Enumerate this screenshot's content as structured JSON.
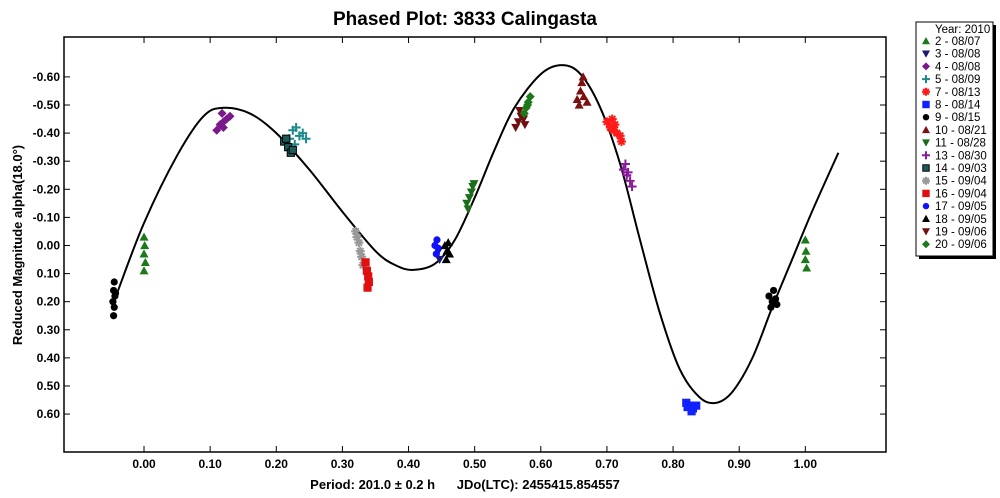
{
  "chart_data": {
    "type": "scatter",
    "title": "Phased Plot: 3833 Calingasta",
    "xlabel": "Period: 201.0 ± 0.2 h      JDo(LTC): 2455415.854557",
    "ylabel": "Reduced Magnitude alpha(18.0°)",
    "xlim": [
      -0.121,
      1.122
    ],
    "ylim": [
      -0.742,
      0.735
    ],
    "y_inverted": true,
    "grid": false,
    "x_ticks": [
      "0.00",
      "0.10",
      "0.20",
      "0.30",
      "0.40",
      "0.50",
      "0.60",
      "0.70",
      "0.80",
      "0.90",
      "1.00"
    ],
    "y_ticks": [
      "-0.60",
      "-0.50",
      "-0.40",
      "-0.30",
      "-0.20",
      "-0.10",
      "0.00",
      "0.10",
      "0.20",
      "0.30",
      "0.40",
      "0.50",
      "0.60"
    ],
    "legend": {
      "title": "Year: 2010",
      "placement": "right"
    },
    "fit_curve": [
      [
        -0.04,
        0.165
      ],
      [
        0.0,
        -0.08
      ],
      [
        0.05,
        -0.32
      ],
      [
        0.09,
        -0.46
      ],
      [
        0.12,
        -0.49
      ],
      [
        0.16,
        -0.47
      ],
      [
        0.2,
        -0.4
      ],
      [
        0.25,
        -0.27
      ],
      [
        0.3,
        -0.12
      ],
      [
        0.35,
        0.02
      ],
      [
        0.38,
        0.07
      ],
      [
        0.407,
        0.087
      ],
      [
        0.44,
        0.065
      ],
      [
        0.47,
        -0.02
      ],
      [
        0.5,
        -0.17
      ],
      [
        0.53,
        -0.34
      ],
      [
        0.56,
        -0.49
      ],
      [
        0.6,
        -0.61
      ],
      [
        0.632,
        -0.642
      ],
      [
        0.66,
        -0.61
      ],
      [
        0.69,
        -0.49
      ],
      [
        0.72,
        -0.29
      ],
      [
        0.75,
        -0.02
      ],
      [
        0.78,
        0.24
      ],
      [
        0.81,
        0.44
      ],
      [
        0.84,
        0.54
      ],
      [
        0.865,
        0.56
      ],
      [
        0.89,
        0.52
      ],
      [
        0.92,
        0.4
      ],
      [
        0.95,
        0.22
      ],
      [
        0.98,
        0.05
      ],
      [
        1.01,
        -0.12
      ],
      [
        1.05,
        -0.33
      ]
    ],
    "series": [
      {
        "name": "2 - 08/07",
        "marker": "triangle",
        "color": "#1a7a1a",
        "points": [
          [
            0.0,
            -0.03
          ],
          [
            0.001,
            0.0
          ],
          [
            0.0,
            0.03
          ],
          [
            0.002,
            0.06
          ],
          [
            0.0,
            0.09
          ],
          [
            1.0,
            -0.02
          ],
          [
            1.001,
            0.02
          ],
          [
            1.0,
            0.05
          ],
          [
            1.002,
            0.08
          ]
        ]
      },
      {
        "name": "3 - 08/08",
        "marker": "triangle-down",
        "color": "#1a1a70",
        "points": [
          [
            0.445,
            0.02
          ],
          [
            0.447,
            0.05
          ]
        ]
      },
      {
        "name": "4 - 08/08",
        "marker": "diamond",
        "color": "#7a1a8a",
        "points": [
          [
            0.11,
            -0.41
          ],
          [
            0.115,
            -0.43
          ],
          [
            0.12,
            -0.44
          ],
          [
            0.125,
            -0.45
          ],
          [
            0.12,
            -0.42
          ],
          [
            0.13,
            -0.46
          ],
          [
            0.118,
            -0.47
          ]
        ]
      },
      {
        "name": "5 - 08/09",
        "marker": "plus",
        "color": "#1a8a8a",
        "points": [
          [
            0.22,
            -0.38
          ],
          [
            0.225,
            -0.41
          ],
          [
            0.23,
            -0.42
          ],
          [
            0.235,
            -0.39
          ],
          [
            0.24,
            -0.4
          ],
          [
            0.228,
            -0.36
          ],
          [
            0.245,
            -0.38
          ]
        ]
      },
      {
        "name": "7 - 08/13",
        "marker": "asterisk",
        "color": "#ff1a1a",
        "points": [
          [
            0.7,
            -0.44
          ],
          [
            0.705,
            -0.42
          ],
          [
            0.71,
            -0.41
          ],
          [
            0.715,
            -0.4
          ],
          [
            0.72,
            -0.39
          ],
          [
            0.708,
            -0.45
          ],
          [
            0.722,
            -0.37
          ],
          [
            0.712,
            -0.43
          ]
        ]
      },
      {
        "name": "8 - 08/14",
        "marker": "square",
        "color": "#1020ff",
        "points": [
          [
            0.82,
            0.56
          ],
          [
            0.825,
            0.57
          ],
          [
            0.83,
            0.58
          ],
          [
            0.835,
            0.57
          ],
          [
            0.828,
            0.59
          ],
          [
            0.822,
            0.575
          ]
        ]
      },
      {
        "name": "9 - 08/15",
        "marker": "hexagon",
        "color": "#000000",
        "points": [
          [
            -0.045,
            0.13
          ],
          [
            -0.046,
            0.16
          ],
          [
            -0.044,
            0.18
          ],
          [
            -0.047,
            0.2
          ],
          [
            -0.045,
            0.22
          ],
          [
            -0.046,
            0.25
          ],
          [
            -0.043,
            0.17
          ],
          [
            0.945,
            0.18
          ],
          [
            0.95,
            0.2
          ],
          [
            0.955,
            0.19
          ],
          [
            0.948,
            0.22
          ],
          [
            0.952,
            0.16
          ],
          [
            0.957,
            0.21
          ]
        ]
      },
      {
        "name": "10 - 08/21",
        "marker": "triangle",
        "color": "#7a1010",
        "points": [
          [
            0.655,
            -0.52
          ],
          [
            0.66,
            -0.55
          ],
          [
            0.662,
            -0.58
          ],
          [
            0.665,
            -0.53
          ],
          [
            0.67,
            -0.51
          ],
          [
            0.658,
            -0.5
          ],
          [
            0.664,
            -0.6
          ]
        ]
      },
      {
        "name": "11 - 08/28",
        "marker": "triangle-down",
        "color": "#1a6e1a",
        "points": [
          [
            0.488,
            -0.15
          ],
          [
            0.492,
            -0.17
          ],
          [
            0.495,
            -0.19
          ],
          [
            0.497,
            -0.21
          ],
          [
            0.49,
            -0.13
          ],
          [
            0.499,
            -0.22
          ]
        ]
      },
      {
        "name": "13 - 08/30",
        "marker": "plus",
        "color": "#8a1a9a",
        "points": [
          [
            0.725,
            -0.27
          ],
          [
            0.73,
            -0.25
          ],
          [
            0.728,
            -0.29
          ],
          [
            0.735,
            -0.23
          ],
          [
            0.732,
            -0.26
          ],
          [
            0.738,
            -0.21
          ]
        ]
      },
      {
        "name": "14 - 09/03",
        "marker": "square",
        "color": "#1a5a5a",
        "points": [
          [
            0.212,
            -0.37
          ],
          [
            0.218,
            -0.35
          ],
          [
            0.222,
            -0.33
          ],
          [
            0.215,
            -0.38
          ],
          [
            0.225,
            -0.34
          ]
        ]
      },
      {
        "name": "15 - 09/04",
        "marker": "asterisk",
        "color": "#999999",
        "points": [
          [
            0.32,
            -0.05
          ],
          [
            0.322,
            -0.03
          ],
          [
            0.325,
            -0.01
          ],
          [
            0.327,
            0.02
          ],
          [
            0.329,
            0.04
          ],
          [
            0.331,
            0.07
          ]
        ]
      },
      {
        "name": "16 - 09/04",
        "marker": "square",
        "color": "#e01010",
        "points": [
          [
            0.335,
            0.06
          ],
          [
            0.337,
            0.09
          ],
          [
            0.339,
            0.11
          ],
          [
            0.34,
            0.13
          ],
          [
            0.338,
            0.15
          ]
        ]
      },
      {
        "name": "17 - 09/05",
        "marker": "circle",
        "color": "#1010ff",
        "points": [
          [
            0.44,
            0.0
          ],
          [
            0.443,
            -0.02
          ],
          [
            0.445,
            0.01
          ],
          [
            0.442,
            0.03
          ]
        ]
      },
      {
        "name": "18 - 09/05",
        "marker": "triangle",
        "color": "#000000",
        "points": [
          [
            0.455,
            0.0
          ],
          [
            0.458,
            0.02
          ],
          [
            0.46,
            -0.01
          ],
          [
            0.462,
            0.03
          ],
          [
            0.457,
            0.05
          ]
        ]
      },
      {
        "name": "19 - 09/06",
        "marker": "triangle-down",
        "color": "#6e1010",
        "points": [
          [
            0.562,
            -0.42
          ],
          [
            0.566,
            -0.44
          ],
          [
            0.57,
            -0.46
          ],
          [
            0.574,
            -0.45
          ],
          [
            0.568,
            -0.48
          ],
          [
            0.576,
            -0.43
          ]
        ]
      },
      {
        "name": "20 - 09/06",
        "marker": "diamond",
        "color": "#1a7a1a",
        "points": [
          [
            0.575,
            -0.47
          ],
          [
            0.578,
            -0.49
          ],
          [
            0.581,
            -0.51
          ],
          [
            0.584,
            -0.53
          ],
          [
            0.58,
            -0.5
          ]
        ]
      }
    ]
  }
}
